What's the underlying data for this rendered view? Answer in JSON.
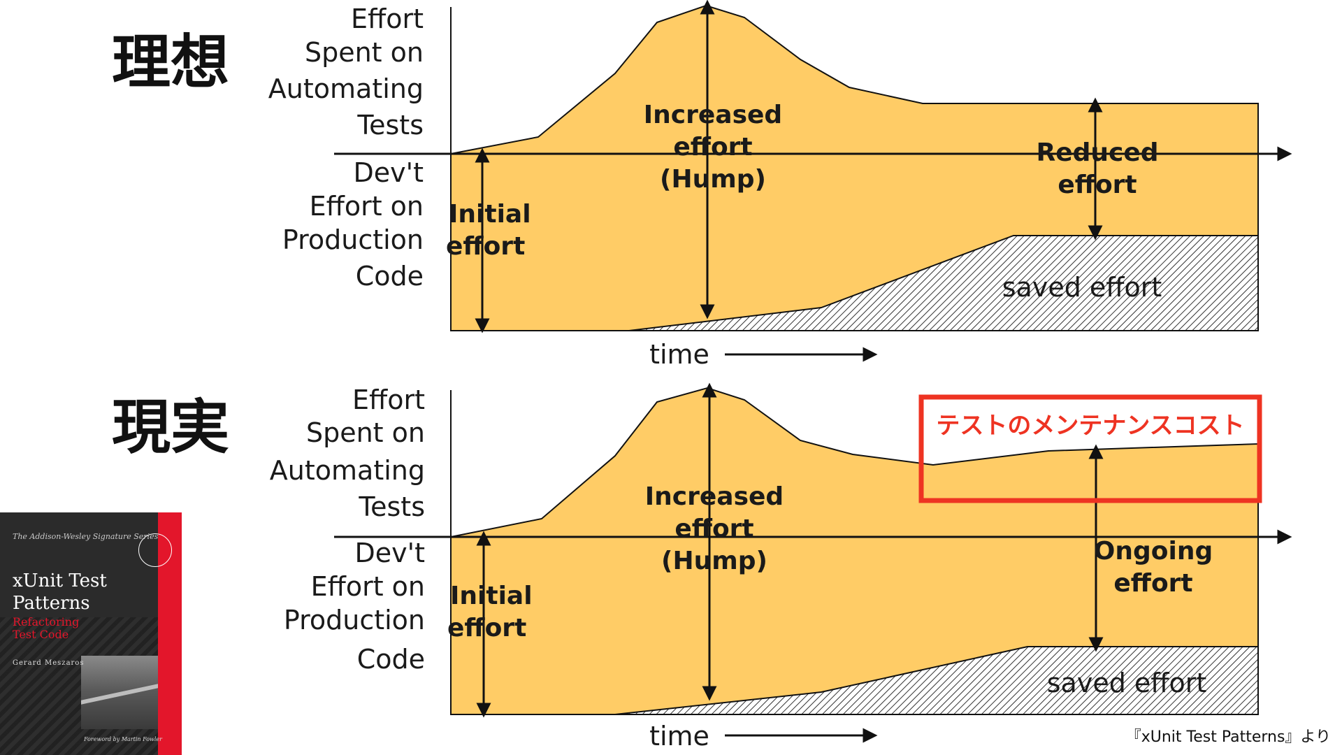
{
  "headings": {
    "ideal": "理想",
    "reality": "現実"
  },
  "axis_labels": {
    "upper": [
      "Effort",
      "Spent on",
      "Automating",
      "Tests"
    ],
    "lower": [
      "Dev't",
      "Effort on",
      "Production",
      "Code"
    ],
    "time": "time"
  },
  "diagram_top": {
    "initial": [
      "Initial",
      "effort"
    ],
    "increased": [
      "Increased",
      "effort",
      "(Hump)"
    ],
    "reduced": [
      "Reduced",
      "effort"
    ],
    "saved": "saved effort"
  },
  "diagram_bottom": {
    "initial": [
      "Initial",
      "effort"
    ],
    "increased": [
      "Increased",
      "effort",
      "(Hump)"
    ],
    "ongoing": [
      "Ongoing",
      "effort"
    ],
    "saved": "saved effort",
    "callout": "テストのメンテナンスコスト"
  },
  "book": {
    "series": "The Addison-Wesley Signature Series",
    "title_line1": "xUnit Test",
    "title_line2": "Patterns",
    "subtitle_line1": "Refactoring",
    "subtitle_line2": "Test Code",
    "author": "Gerard Meszaros",
    "foreword": "Foreword by Martin Fowler"
  },
  "credit": "『xUnit Test Patterns』より",
  "colors": {
    "fill": "#ffcc66",
    "callout": "#ee3322",
    "ink": "#111111"
  }
}
